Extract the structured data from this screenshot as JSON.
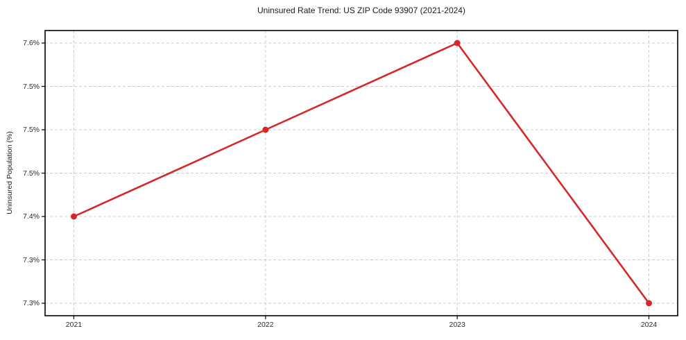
{
  "chart_data": {
    "type": "line",
    "title": "Uninsured Rate Trend: US ZIP Code 93907 (2021-2024)",
    "xlabel": "",
    "ylabel": "Uninsured Population (%)",
    "x": [
      2021,
      2022,
      2023,
      2024
    ],
    "values": [
      7.4,
      7.5,
      7.6,
      7.3
    ],
    "x_ticks": [
      {
        "value": 2021,
        "label": "2021"
      },
      {
        "value": 2022,
        "label": "2022"
      },
      {
        "value": 2023,
        "label": "2023"
      },
      {
        "value": 2024,
        "label": "2024"
      }
    ],
    "y_ticks": [
      {
        "value": 7.3,
        "label": "7.3%"
      },
      {
        "value": 7.35,
        "label": "7.3%"
      },
      {
        "value": 7.4,
        "label": "7.4%"
      },
      {
        "value": 7.45,
        "label": "7.5%"
      },
      {
        "value": 7.5,
        "label": "7.5%"
      },
      {
        "value": 7.55,
        "label": "7.5%"
      },
      {
        "value": 7.6,
        "label": "7.6%"
      }
    ],
    "xlim": [
      2020.85,
      2024.15
    ],
    "ylim": [
      7.2856,
      7.6144
    ],
    "grid": true,
    "grid_style": "dashed",
    "legend": "none",
    "line_color": "#d62728",
    "marker": "circle",
    "grid_color": "#cccccc",
    "spine_color": "#000000",
    "background_color": "#ffffff"
  }
}
